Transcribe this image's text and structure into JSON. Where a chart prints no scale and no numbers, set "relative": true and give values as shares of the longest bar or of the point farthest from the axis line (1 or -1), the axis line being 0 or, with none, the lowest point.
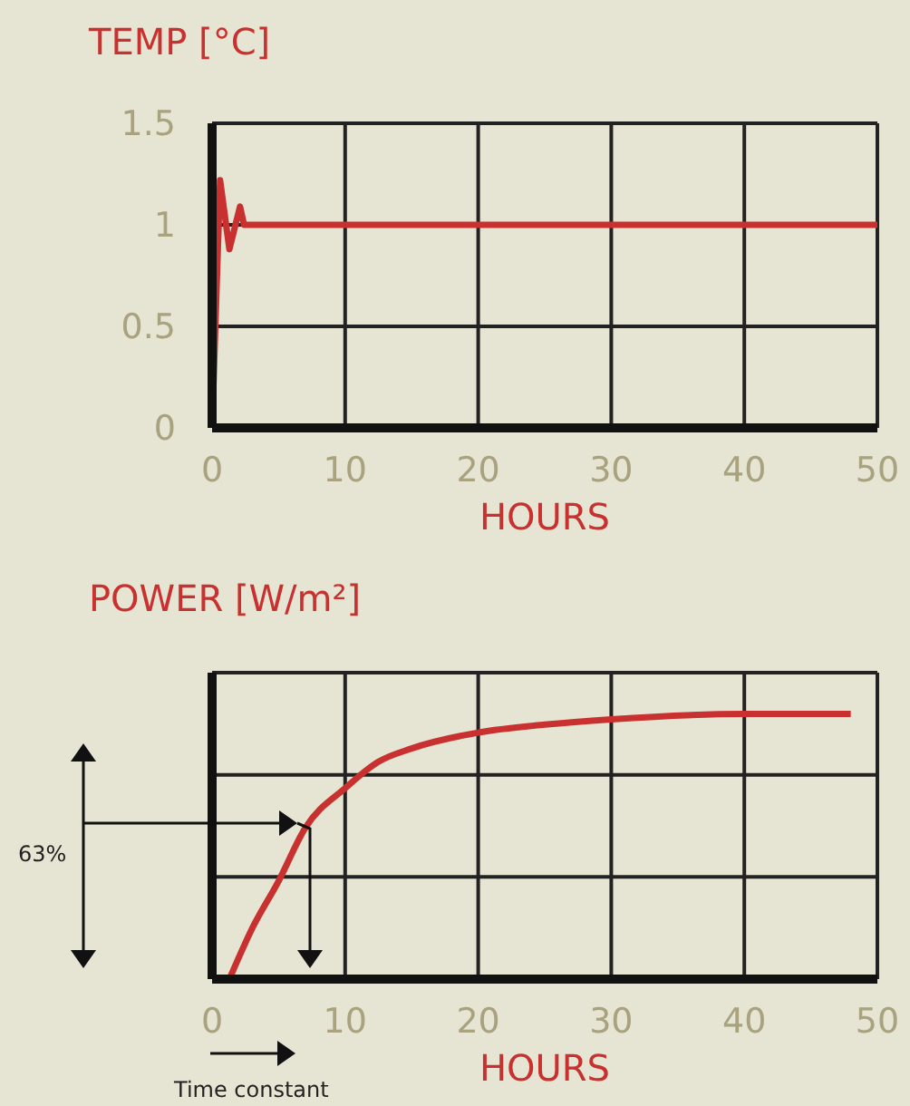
{
  "chart_data": [
    {
      "type": "line",
      "title": "TEMP [°C]",
      "xlabel": "HOURS",
      "x": [
        0,
        0.6,
        1.3,
        2.1,
        2.4,
        50
      ],
      "values": [
        0,
        1.22,
        0.88,
        1.09,
        1.0,
        1.0
      ],
      "color": "#c8312f",
      "xlim": [
        0,
        50
      ],
      "xticks": [
        0,
        10,
        20,
        30,
        40,
        50
      ],
      "ylim": [
        0,
        1.5
      ],
      "yticks": [
        0,
        0.5,
        1,
        1.5
      ],
      "grid": true
    },
    {
      "type": "line",
      "title": "POWER [W/m²]",
      "xlabel": "HOURS",
      "x": [
        1.3,
        3,
        5,
        7,
        10,
        12.5,
        15,
        20,
        25,
        30,
        40,
        48
      ],
      "values": [
        0,
        0.19,
        0.37,
        0.57,
        0.72,
        0.82,
        0.87,
        0.93,
        0.96,
        0.98,
        1.0,
        1.0
      ],
      "color": "#c8312f",
      "relative": true,
      "xlim": [
        0,
        50
      ],
      "xticks": [
        0,
        10,
        20,
        30,
        40,
        50
      ],
      "tick_labels": "x",
      "grid": true,
      "annotations": [
        "63%",
        "Time constant"
      ]
    }
  ]
}
